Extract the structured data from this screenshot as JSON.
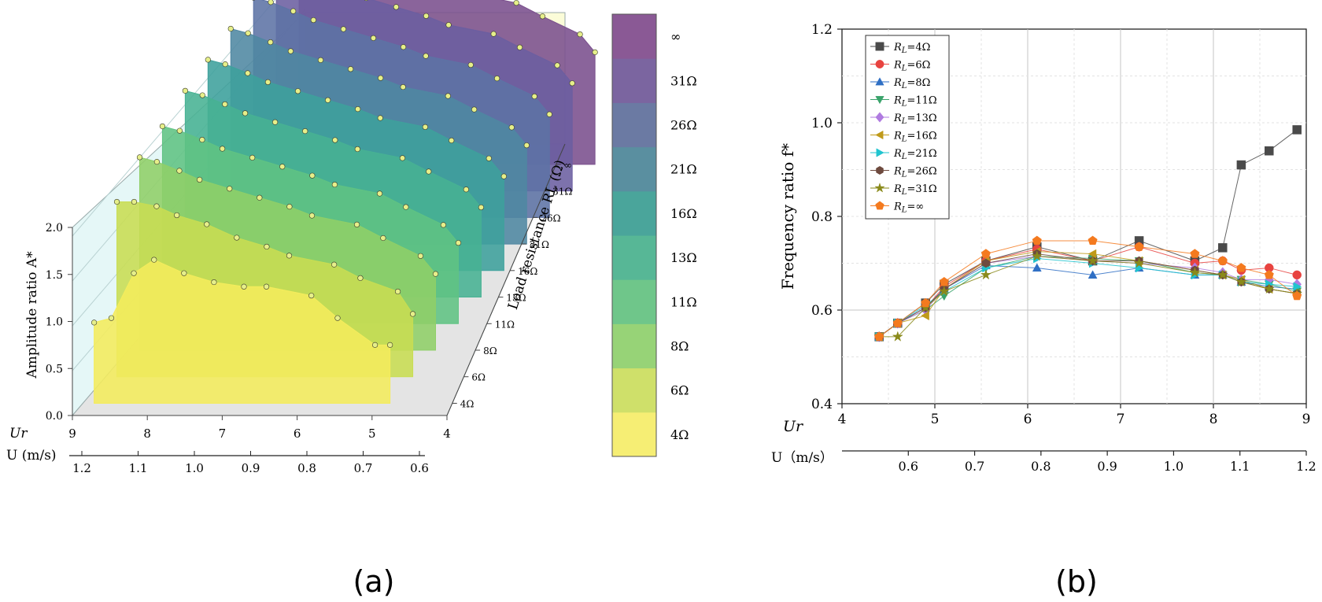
{
  "panels": {
    "a_label": "(a)",
    "b_label": "(b)"
  },
  "chart_data": [
    {
      "id": "a",
      "type": "area",
      "title": "",
      "zlabel": "Amplitude ratio A*",
      "zticks": [
        "0.0",
        "0.5",
        "1.0",
        "1.5",
        "2.0"
      ],
      "zlim": [
        0,
        2
      ],
      "ur_label": "Ur",
      "ur_ticks": [
        "9",
        "8",
        "7",
        "6",
        "5",
        "4"
      ],
      "u_label": "U (m/s)",
      "u_ticks": [
        "1.2",
        "1.1",
        "1.0",
        "0.9",
        "0.8",
        "0.7",
        "0.6"
      ],
      "depth_label": "Load resistance RL (Ω)",
      "depth_ticks": [
        "4Ω",
        "6Ω",
        "8Ω",
        "11Ω",
        "13Ω",
        "16Ω",
        "21Ω",
        "26Ω",
        "31Ω",
        "∞"
      ],
      "colorbar_labels": [
        "4Ω",
        "6Ω",
        "8Ω",
        "11Ω",
        "13Ω",
        "16Ω",
        "21Ω",
        "26Ω",
        "31Ω",
        "∞"
      ],
      "colorbar_colors": [
        "#f6ee74",
        "#cfe06a",
        "#97d377",
        "#6fc68a",
        "#57b796",
        "#4aa59b",
        "#5a8fa0",
        "#6b7aa3",
        "#7b65a0",
        "#8a5995"
      ],
      "series": [
        {
          "name": "4Ω",
          "color": "#f4ec5c",
          "x": [
            8.85,
            8.62,
            8.32,
            8.05,
            7.65,
            7.25,
            6.85,
            6.55,
            5.95,
            5.6,
            5.1,
            4.9
          ],
          "z": [
            0.9,
            0.95,
            1.45,
            1.6,
            1.45,
            1.35,
            1.3,
            1.3,
            1.2,
            0.95,
            0.65,
            0.65
          ]
        },
        {
          "name": "6Ω",
          "color": "#c8dd52",
          "x": [
            8.85,
            8.62,
            8.32,
            8.05,
            7.65,
            7.25,
            6.85,
            6.55,
            5.95,
            5.6,
            5.1,
            4.9
          ],
          "z": [
            1.95,
            1.95,
            1.9,
            1.8,
            1.7,
            1.55,
            1.45,
            1.35,
            1.25,
            1.1,
            0.95,
            0.7
          ]
        },
        {
          "name": "8Ω",
          "color": "#8fcf68",
          "x": [
            8.85,
            8.62,
            8.32,
            8.05,
            7.65,
            7.25,
            6.85,
            6.55,
            5.95,
            5.6,
            5.1,
            4.9
          ],
          "z": [
            2.15,
            2.1,
            2.0,
            1.9,
            1.8,
            1.7,
            1.6,
            1.5,
            1.4,
            1.25,
            1.05,
            0.85
          ]
        },
        {
          "name": "11Ω",
          "color": "#60c383",
          "x": [
            8.85,
            8.62,
            8.32,
            8.05,
            7.65,
            7.25,
            6.85,
            6.55,
            5.95,
            5.6,
            5.1,
            4.9
          ],
          "z": [
            2.2,
            2.15,
            2.05,
            1.95,
            1.85,
            1.75,
            1.65,
            1.55,
            1.45,
            1.3,
            1.1,
            0.9
          ]
        },
        {
          "name": "13Ω",
          "color": "#47b293",
          "x": [
            8.85,
            8.62,
            8.32,
            8.05,
            7.65,
            7.25,
            6.85,
            6.55,
            5.95,
            5.6,
            5.1,
            4.9
          ],
          "z": [
            2.3,
            2.25,
            2.15,
            2.05,
            1.95,
            1.85,
            1.75,
            1.65,
            1.55,
            1.4,
            1.2,
            1.0
          ]
        },
        {
          "name": "16Ω",
          "color": "#3ea19c",
          "x": [
            8.85,
            8.62,
            8.32,
            8.05,
            7.65,
            7.25,
            6.85,
            6.55,
            5.95,
            5.6,
            5.1,
            4.9
          ],
          "z": [
            2.35,
            2.3,
            2.2,
            2.1,
            2.0,
            1.9,
            1.8,
            1.7,
            1.6,
            1.45,
            1.25,
            1.05
          ]
        },
        {
          "name": "21Ω",
          "color": "#4f87a2",
          "x": [
            8.85,
            8.62,
            8.32,
            8.05,
            7.65,
            7.25,
            6.85,
            6.55,
            5.95,
            5.6,
            5.1,
            4.9
          ],
          "z": [
            2.4,
            2.35,
            2.25,
            2.15,
            2.05,
            1.95,
            1.85,
            1.75,
            1.65,
            1.5,
            1.3,
            1.1
          ]
        },
        {
          "name": "26Ω",
          "color": "#5d73a5",
          "x": [
            8.85,
            8.62,
            8.32,
            8.05,
            7.65,
            7.25,
            6.85,
            6.55,
            5.95,
            5.6,
            5.1,
            4.9
          ],
          "z": [
            2.45,
            2.4,
            2.3,
            2.2,
            2.1,
            2.0,
            1.9,
            1.8,
            1.7,
            1.55,
            1.35,
            1.15
          ]
        },
        {
          "name": "31Ω",
          "color": "#6b5ea1",
          "x": [
            8.85,
            8.62,
            8.32,
            8.05,
            7.65,
            7.25,
            6.85,
            6.55,
            5.95,
            5.6,
            5.1,
            4.9
          ],
          "z": [
            2.5,
            2.45,
            2.35,
            2.25,
            2.15,
            2.05,
            1.95,
            1.85,
            1.75,
            1.6,
            1.4,
            1.2
          ]
        },
        {
          "name": "∞",
          "color": "#7a4f8d",
          "x": [
            8.85,
            8.62,
            8.32,
            8.05,
            7.65,
            7.25,
            6.85,
            6.55,
            5.95,
            5.6,
            5.1,
            4.9
          ],
          "z": [
            2.55,
            2.5,
            2.4,
            2.3,
            2.2,
            2.1,
            2.0,
            1.9,
            1.8,
            1.65,
            1.45,
            1.25
          ]
        }
      ]
    },
    {
      "id": "b",
      "type": "line",
      "title": "",
      "ylabel": "Frequency ratio f*",
      "ur_label": "Ur",
      "u_label": "U（m/s）",
      "xlim": [
        4,
        9
      ],
      "ylim": [
        0.4,
        1.2
      ],
      "xticks": [
        "4",
        "5",
        "6",
        "7",
        "8",
        "9"
      ],
      "yticks": [
        "0.4",
        "0.6",
        "0.8",
        "1.0",
        "1.2"
      ],
      "u_ticks": [
        "0.6",
        "0.7",
        "0.8",
        "0.9",
        "1.0",
        "1.1",
        "1.2"
      ],
      "u_range": [
        0.5,
        1.2
      ],
      "x": [
        4.4,
        4.6,
        4.9,
        5.1,
        5.55,
        6.1,
        6.7,
        7.2,
        7.8,
        8.1,
        8.3,
        8.6,
        8.9
      ],
      "series": [
        {
          "name": "4Ω",
          "legend_sub": "4Ω",
          "marker": "square",
          "color": "#4a4a4a",
          "values": [
            0.543,
            0.572,
            0.615,
            0.655,
            0.705,
            0.735,
            0.705,
            0.748,
            0.705,
            0.733,
            0.91,
            0.94,
            0.985
          ]
        },
        {
          "name": "6Ω",
          "legend_sub": "6Ω",
          "marker": "circle",
          "color": "#e8433f",
          "values": [
            0.543,
            0.572,
            0.605,
            0.65,
            0.705,
            0.73,
            0.705,
            0.735,
            0.7,
            0.705,
            0.685,
            0.69,
            0.675
          ]
        },
        {
          "name": "8Ω",
          "legend_sub": "8Ω",
          "marker": "triangle",
          "color": "#2f6fc4",
          "values": [
            0.543,
            0.572,
            0.605,
            0.645,
            0.695,
            0.69,
            0.675,
            0.69,
            0.675,
            0.675,
            0.66,
            0.65,
            0.645
          ]
        },
        {
          "name": "11Ω",
          "legend_sub": "11Ω",
          "marker": "tri-down",
          "color": "#3aa36b",
          "values": [
            0.543,
            0.572,
            0.6,
            0.63,
            0.69,
            0.715,
            0.71,
            0.705,
            0.68,
            0.675,
            0.665,
            0.655,
            0.64
          ]
        },
        {
          "name": "13Ω",
          "legend_sub": "13Ω",
          "marker": "diamond",
          "color": "#b07be0",
          "values": [
            0.543,
            0.572,
            0.6,
            0.645,
            0.7,
            0.715,
            0.705,
            0.7,
            0.69,
            0.68,
            0.665,
            0.665,
            0.655
          ]
        },
        {
          "name": "16Ω",
          "legend_sub": "16Ω",
          "marker": "tri-left",
          "color": "#c09a1a",
          "values": [
            0.543,
            0.572,
            0.588,
            0.645,
            0.705,
            0.725,
            0.72,
            0.705,
            0.685,
            0.675,
            0.665,
            0.645,
            0.635
          ]
        },
        {
          "name": "21Ω",
          "legend_sub": "21Ω",
          "marker": "tri-right",
          "color": "#20c4cf",
          "values": [
            0.543,
            0.572,
            0.61,
            0.64,
            0.69,
            0.71,
            0.7,
            0.69,
            0.675,
            0.675,
            0.66,
            0.655,
            0.65
          ]
        },
        {
          "name": "26Ω",
          "legend_sub": "26Ω",
          "marker": "hexagon",
          "color": "#6e4a3e",
          "values": [
            0.543,
            0.572,
            0.605,
            0.645,
            0.7,
            0.72,
            0.705,
            0.705,
            0.685,
            0.675,
            0.66,
            0.645,
            0.635
          ]
        },
        {
          "name": "31Ω",
          "legend_sub": "31Ω",
          "marker": "star",
          "color": "#8a8a1a",
          "values": [
            0.543,
            0.543,
            0.605,
            0.64,
            0.675,
            0.715,
            0.705,
            0.7,
            0.68,
            0.675,
            0.66,
            0.645,
            0.635
          ]
        },
        {
          "name": "∞",
          "legend_sub": "∞",
          "marker": "pentagon",
          "color": "#f47a1f",
          "values": [
            0.543,
            0.572,
            0.615,
            0.66,
            0.72,
            0.748,
            0.748,
            0.735,
            0.72,
            0.705,
            0.69,
            0.675,
            0.63
          ]
        }
      ]
    }
  ]
}
